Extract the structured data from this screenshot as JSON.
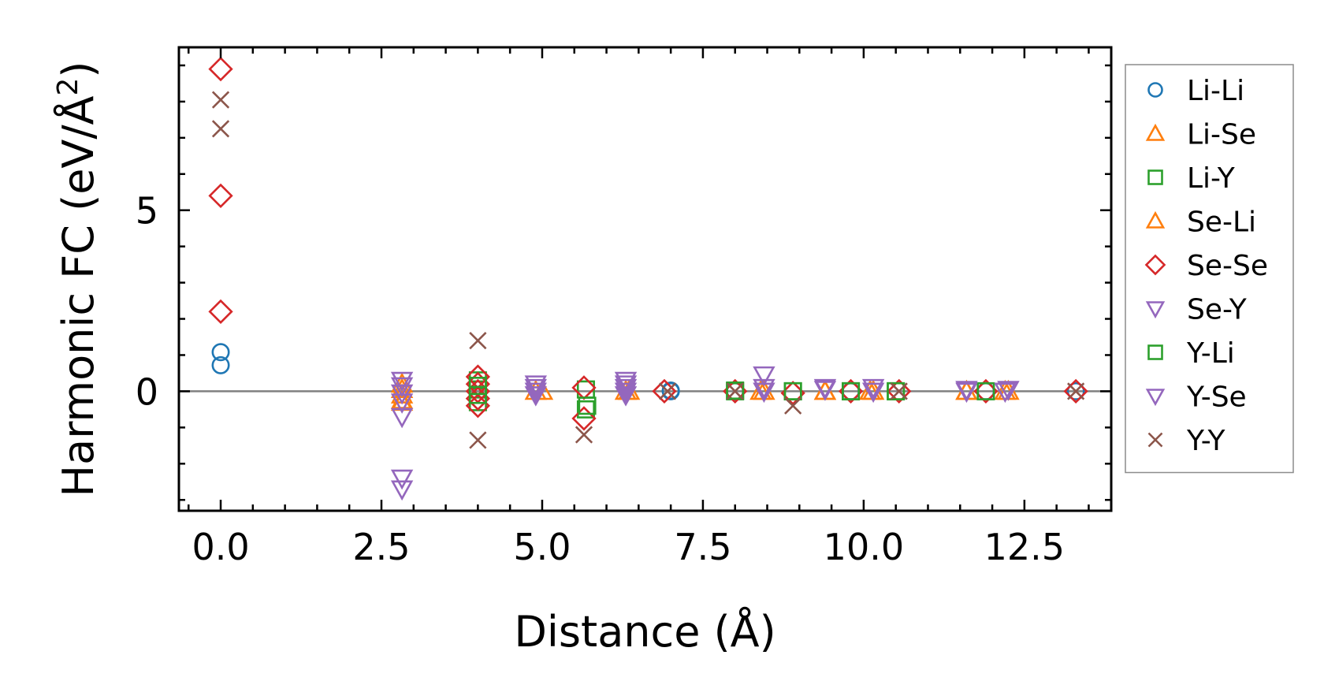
{
  "chart_data": {
    "type": "scatter",
    "xlabel": "Distance (Å)",
    "ylabel": {
      "prefix": "Harmonic FC (eV/Å",
      "sup": "2",
      "suffix": ")"
    },
    "xlim": [
      -0.65,
      13.85
    ],
    "ylim": [
      -3.3,
      9.5
    ],
    "x_ticks": [
      0,
      2.5,
      5,
      7.5,
      10,
      12.5
    ],
    "x_tick_labels": [
      "0.0",
      "2.5",
      "5.0",
      "7.5",
      "10.0",
      "12.5"
    ],
    "y_ticks": [
      0,
      5
    ],
    "y_tick_labels": [
      "0",
      "5"
    ],
    "x_minor_step": 0.5,
    "y_minor_step": 1,
    "zero_line": true,
    "legend_position": "outside-right",
    "series": [
      {
        "name": "Li-Li",
        "marker": "circle",
        "color": "#1f77b4",
        "points": [
          [
            0,
            0.72
          ],
          [
            0,
            1.08
          ],
          [
            7.0,
            0
          ],
          [
            7.0,
            0.02
          ],
          [
            8.0,
            0
          ],
          [
            9.8,
            0
          ],
          [
            11.9,
            0
          ],
          [
            13.3,
            0
          ]
        ]
      },
      {
        "name": "Li-Se",
        "marker": "triangle-up",
        "color": "#ff7f0e",
        "points": [
          [
            2.82,
            -0.25
          ],
          [
            2.82,
            0.05
          ],
          [
            2.82,
            0.2
          ],
          [
            4.9,
            0
          ],
          [
            6.35,
            0
          ],
          [
            8.45,
            0
          ],
          [
            9.4,
            0
          ],
          [
            10.15,
            0
          ],
          [
            11.6,
            0
          ],
          [
            12.25,
            0
          ]
        ]
      },
      {
        "name": "Li-Y",
        "marker": "square",
        "color": "#2ca02c",
        "points": [
          [
            4.0,
            0.3
          ],
          [
            4.0,
            -0.3
          ],
          [
            4.0,
            0.05
          ],
          [
            5.68,
            -0.5
          ],
          [
            5.68,
            0.05
          ],
          [
            8.0,
            0
          ],
          [
            8.9,
            0
          ],
          [
            9.8,
            0
          ],
          [
            10.5,
            0
          ]
        ]
      },
      {
        "name": "Se-Li",
        "marker": "triangle-up",
        "color": "#ff7f0e",
        "points": [
          [
            2.82,
            -0.1
          ],
          [
            2.82,
            -0.3
          ],
          [
            5.0,
            0
          ],
          [
            6.3,
            0
          ],
          [
            8.4,
            0
          ],
          [
            9.4,
            0
          ],
          [
            10.1,
            0
          ],
          [
            11.6,
            0
          ],
          [
            12.2,
            0
          ]
        ]
      },
      {
        "name": "Se-Se",
        "marker": "diamond",
        "color": "#d62728",
        "points": [
          [
            0,
            8.9
          ],
          [
            0,
            5.4
          ],
          [
            0,
            2.2
          ],
          [
            4.0,
            0.4
          ],
          [
            4.0,
            0.2
          ],
          [
            4.0,
            0
          ],
          [
            4.0,
            -0.2
          ],
          [
            4.0,
            -0.4
          ],
          [
            5.65,
            0.1
          ],
          [
            5.65,
            -0.75
          ],
          [
            6.9,
            0
          ],
          [
            8.0,
            0
          ],
          [
            8.9,
            -0.05
          ],
          [
            9.8,
            0
          ],
          [
            10.55,
            0
          ],
          [
            11.9,
            0
          ],
          [
            13.3,
            0
          ]
        ]
      },
      {
        "name": "Se-Y",
        "marker": "triangle-down",
        "color": "#9467bd",
        "points": [
          [
            2.82,
            0.3
          ],
          [
            2.82,
            -0.05
          ],
          [
            2.82,
            -0.7
          ],
          [
            2.82,
            -2.4
          ],
          [
            2.82,
            -2.7
          ],
          [
            4.9,
            0.2
          ],
          [
            4.9,
            0
          ],
          [
            6.3,
            0.3
          ],
          [
            6.3,
            0.1
          ],
          [
            6.3,
            -0.1
          ],
          [
            8.45,
            0.45
          ],
          [
            8.45,
            0.1
          ],
          [
            9.4,
            0.1
          ],
          [
            10.15,
            0.1
          ],
          [
            11.6,
            0.05
          ],
          [
            12.25,
            0.05
          ]
        ]
      },
      {
        "name": "Y-Li",
        "marker": "square",
        "color": "#2ca02c",
        "points": [
          [
            4.0,
            0.15
          ],
          [
            4.0,
            -0.1
          ],
          [
            5.7,
            -0.4
          ],
          [
            8.0,
            0.02
          ],
          [
            8.9,
            0
          ],
          [
            9.8,
            0
          ],
          [
            10.5,
            0
          ],
          [
            11.9,
            0
          ]
        ]
      },
      {
        "name": "Y-Se",
        "marker": "triangle-down",
        "color": "#9467bd",
        "points": [
          [
            2.82,
            0.15
          ],
          [
            2.82,
            -0.3
          ],
          [
            4.9,
            0.1
          ],
          [
            4.9,
            -0.1
          ],
          [
            6.3,
            0.2
          ],
          [
            6.3,
            0
          ],
          [
            8.45,
            0
          ],
          [
            9.4,
            0.05
          ],
          [
            10.15,
            0
          ],
          [
            11.6,
            0
          ],
          [
            12.2,
            0
          ]
        ]
      },
      {
        "name": "Y-Y",
        "marker": "x",
        "color": "#8c564b",
        "points": [
          [
            0,
            8.05
          ],
          [
            0,
            7.25
          ],
          [
            4.0,
            1.4
          ],
          [
            4.0,
            -1.35
          ],
          [
            5.65,
            -1.2
          ],
          [
            6.95,
            0
          ],
          [
            8.0,
            0
          ],
          [
            8.9,
            -0.4
          ],
          [
            10.55,
            0
          ],
          [
            13.3,
            0
          ]
        ]
      }
    ]
  }
}
